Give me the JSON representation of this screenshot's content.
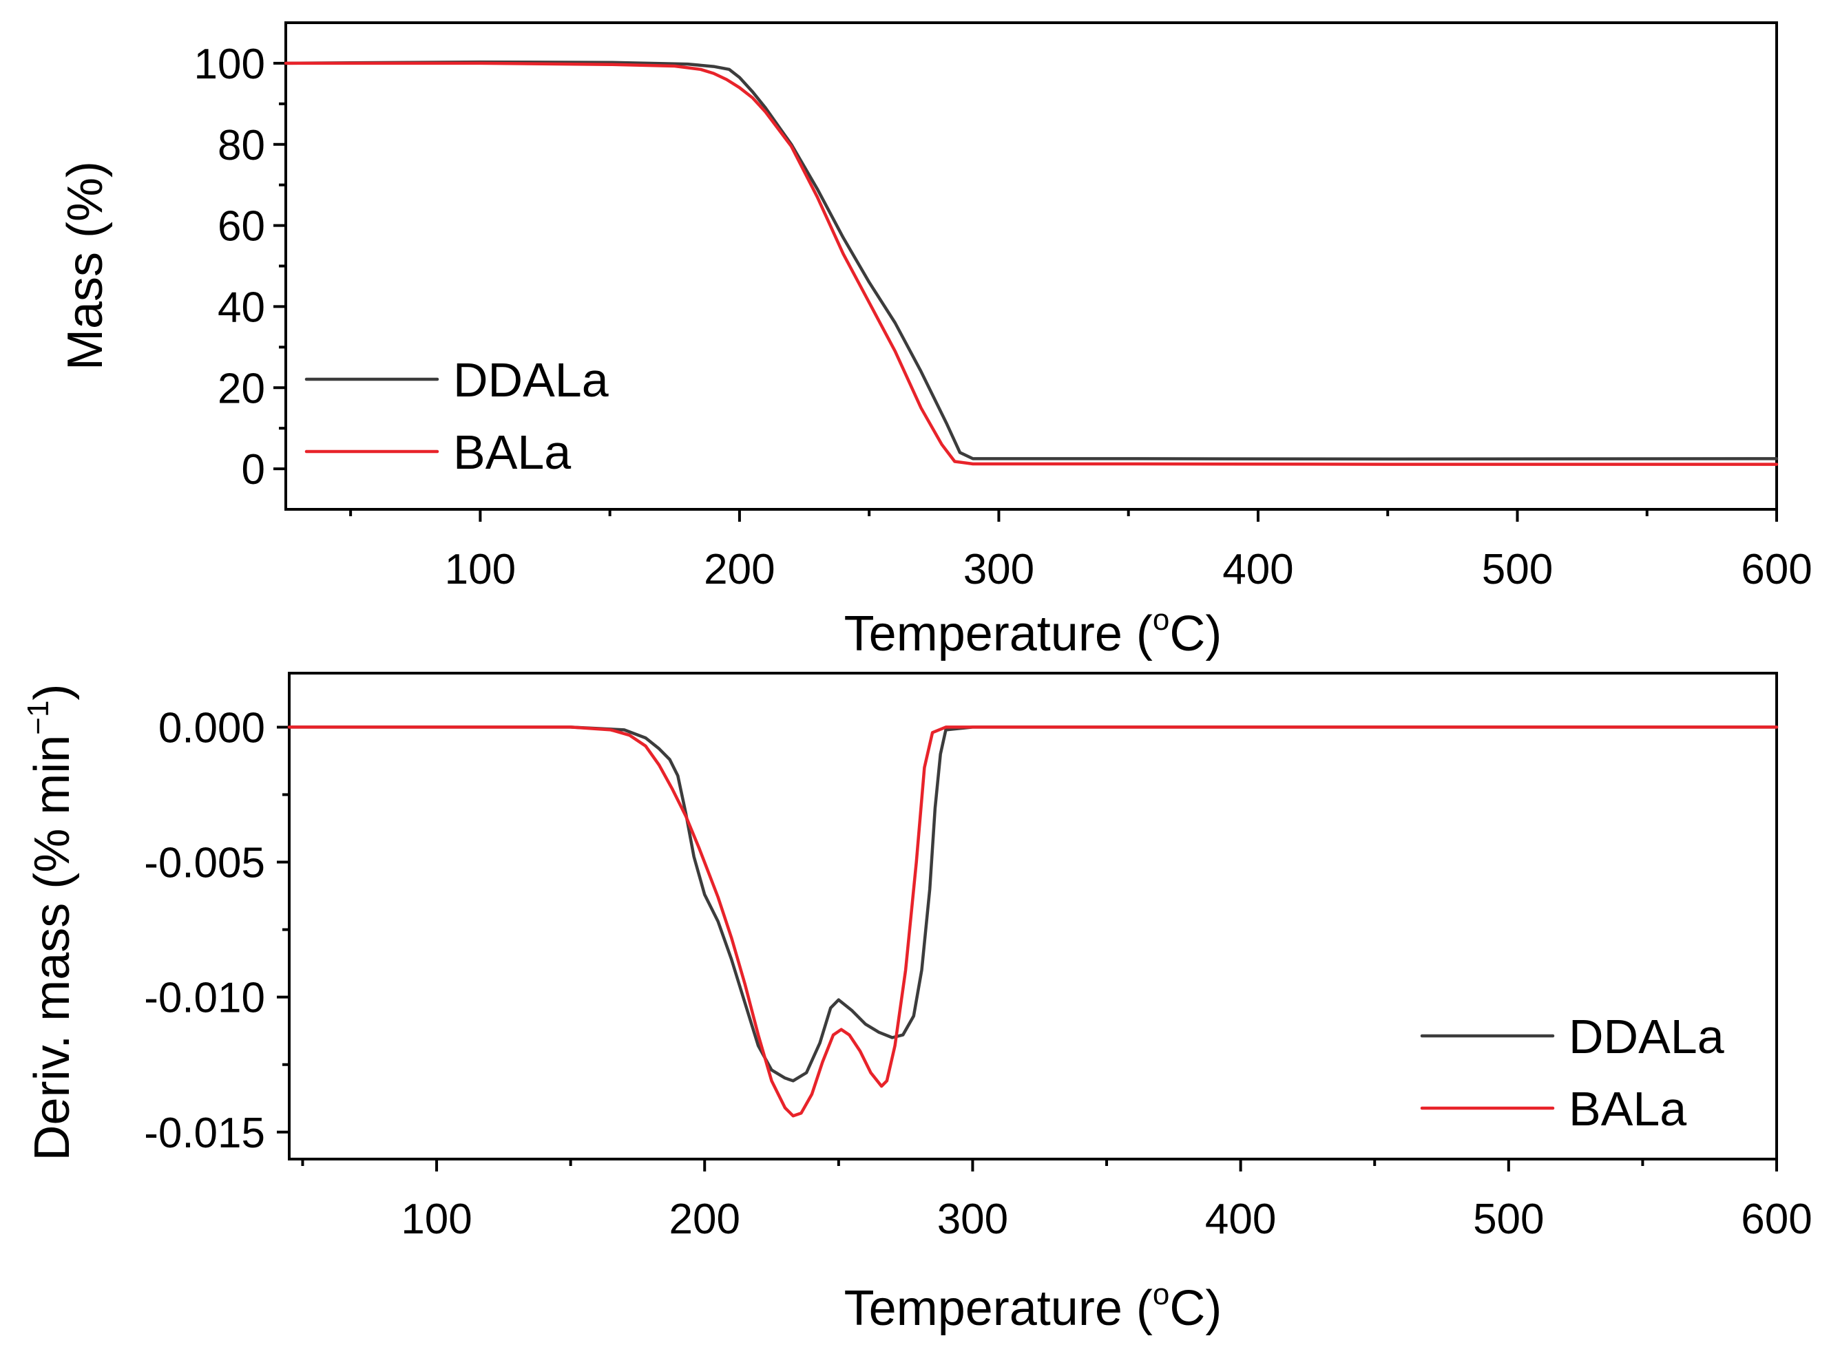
{
  "colors": {
    "ddala": "#3c3c3c",
    "bala": "#e8232a",
    "axis": "#000000"
  },
  "chart_data": [
    {
      "type": "line",
      "id": "mass",
      "title": "",
      "xlabel": "Temperature (°C)",
      "xlabel_main": "Temperature (",
      "xlabel_sup": "o",
      "xlabel_tail": "C)",
      "ylabel": "Mass (%)",
      "xlim": [
        25,
        600
      ],
      "ylim": [
        -10,
        110
      ],
      "xticks": [
        100,
        200,
        300,
        400,
        500,
        600
      ],
      "xtick_labels": [
        "100",
        "200",
        "300",
        "400",
        "500",
        "600"
      ],
      "yticks": [
        0,
        20,
        40,
        60,
        80,
        100
      ],
      "ytick_labels": [
        "0",
        "20",
        "40",
        "60",
        "80",
        "100"
      ],
      "x_minor_step": 50,
      "y_minor_step": 10,
      "grid": false,
      "legend_position": "middle-left",
      "series": [
        {
          "name": "DDALa",
          "color": "#3c3c3c",
          "x": [
            25,
            100,
            150,
            180,
            190,
            196,
            200,
            205,
            210,
            220,
            230,
            240,
            250,
            260,
            270,
            280,
            285,
            290,
            350,
            450,
            600
          ],
          "y": [
            100,
            100.3,
            100.2,
            99.8,
            99.2,
            98.5,
            96.5,
            93,
            89,
            80,
            69,
            57,
            46,
            36,
            24,
            11,
            4,
            2.5,
            2.5,
            2.4,
            2.5
          ]
        },
        {
          "name": "BALa",
          "color": "#e8232a",
          "x": [
            25,
            100,
            150,
            175,
            185,
            190,
            195,
            200,
            205,
            210,
            220,
            230,
            240,
            250,
            260,
            270,
            278,
            283,
            290,
            350,
            450,
            600
          ],
          "y": [
            100,
            100,
            99.7,
            99.3,
            98.5,
            97.5,
            96,
            94,
            91.5,
            88,
            79.5,
            67,
            53,
            41,
            29,
            15,
            6,
            1.8,
            1.2,
            1.2,
            1.1,
            1.1
          ]
        }
      ]
    },
    {
      "type": "line",
      "id": "deriv",
      "title": "",
      "xlabel": "Temperature (°C)",
      "xlabel_main": "Temperature (",
      "xlabel_sup": "o",
      "xlabel_tail": "C)",
      "ylabel": "Deriv. mass (% min⁻¹)",
      "ylabel_main": "Deriv. mass (% min",
      "ylabel_sup": "−1",
      "ylabel_tail": ")",
      "xlim": [
        45,
        600
      ],
      "ylim": [
        -0.016,
        0.002
      ],
      "xticks": [
        100,
        200,
        300,
        400,
        500,
        600
      ],
      "xtick_labels": [
        "100",
        "200",
        "300",
        "400",
        "500",
        "600"
      ],
      "yticks": [
        0.0,
        -0.005,
        -0.01,
        -0.015
      ],
      "ytick_labels": [
        "0.000",
        "-0.005",
        "-0.010",
        "-0.015"
      ],
      "x_minor_step": 50,
      "y_minor_step": 0.0025,
      "grid": false,
      "legend_position": "bottom-right",
      "series": [
        {
          "name": "DDALa",
          "color": "#3c3c3c",
          "x": [
            45,
            100,
            150,
            170,
            178,
            183,
            187,
            190,
            193,
            196,
            200,
            205,
            210,
            215,
            220,
            225,
            230,
            233,
            238,
            243,
            247,
            250,
            255,
            260,
            265,
            270,
            274,
            278,
            281,
            284,
            286,
            288,
            290,
            300,
            400,
            600
          ],
          "y": [
            0,
            0,
            0,
            -0.0001,
            -0.0004,
            -0.0008,
            -0.0012,
            -0.0018,
            -0.0032,
            -0.0048,
            -0.0062,
            -0.0072,
            -0.0086,
            -0.0102,
            -0.0118,
            -0.0127,
            -0.013,
            -0.0131,
            -0.0128,
            -0.0117,
            -0.0104,
            -0.0101,
            -0.0105,
            -0.011,
            -0.0113,
            -0.0115,
            -0.0114,
            -0.0107,
            -0.009,
            -0.006,
            -0.003,
            -0.001,
            -0.0001,
            0,
            0,
            0
          ]
        },
        {
          "name": "BALa",
          "color": "#e8232a",
          "x": [
            45,
            100,
            150,
            165,
            172,
            178,
            183,
            188,
            193,
            198,
            205,
            210,
            215,
            220,
            225,
            230,
            233,
            236,
            240,
            244,
            248,
            251,
            254,
            258,
            262,
            266,
            268,
            271,
            275,
            279,
            282,
            285,
            290,
            300,
            400,
            600
          ],
          "y": [
            0,
            0,
            0,
            -0.0001,
            -0.0003,
            -0.0007,
            -0.0014,
            -0.0023,
            -0.0033,
            -0.0045,
            -0.0063,
            -0.0078,
            -0.0095,
            -0.0114,
            -0.0131,
            -0.0141,
            -0.0144,
            -0.0143,
            -0.0136,
            -0.0124,
            -0.0114,
            -0.0112,
            -0.0114,
            -0.012,
            -0.0128,
            -0.0133,
            -0.0131,
            -0.0118,
            -0.009,
            -0.005,
            -0.0015,
            -0.0002,
            0,
            0,
            0,
            0
          ]
        }
      ]
    }
  ]
}
